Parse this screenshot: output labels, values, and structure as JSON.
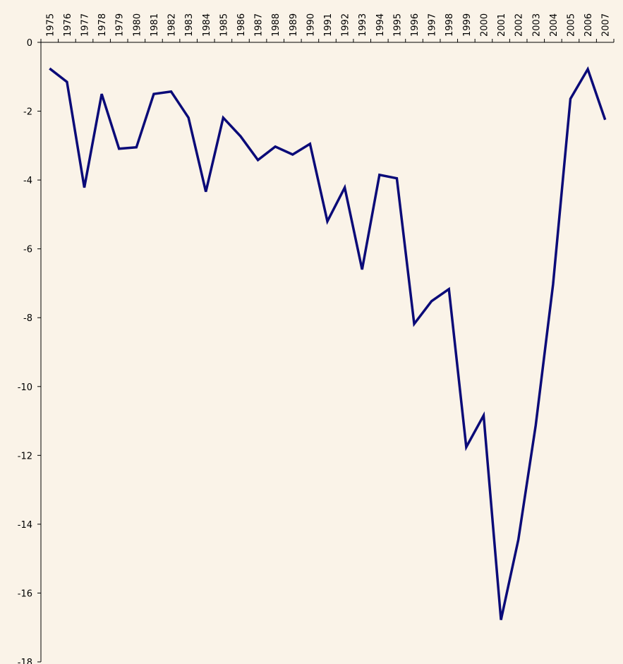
{
  "chart_data": {
    "type": "line",
    "categories": [
      "1975",
      "1976",
      "1977",
      "1978",
      "1979",
      "1980",
      "1981",
      "1982",
      "1983",
      "1984",
      "1985",
      "1986",
      "1987",
      "1988",
      "1989",
      "1990",
      "1991",
      "1992",
      "1993",
      "1994",
      "1995",
      "1996",
      "1997",
      "1998",
      "1999",
      "2000",
      "2001",
      "2002",
      "2003",
      "2004",
      "2005",
      "2006",
      "2007"
    ],
    "series": [
      {
        "color": "#0a0a78",
        "values": [
          -0.76,
          -1.15,
          -4.22,
          -1.5,
          -3.09,
          -3.05,
          -1.5,
          -1.43,
          -2.19,
          -4.34,
          -2.19,
          -2.73,
          -3.42,
          -3.03,
          -3.26,
          -2.95,
          -5.2,
          -4.22,
          -6.6,
          -3.85,
          -3.95,
          -8.18,
          -7.52,
          -7.17,
          -11.76,
          -10.84,
          -16.78,
          -14.45,
          -11.13,
          -7.03,
          -1.64,
          -0.78,
          -2.25
        ]
      }
    ],
    "ylim": [
      -18,
      0
    ],
    "yticks": [
      0,
      -2,
      -4,
      -6,
      -8,
      -10,
      -12,
      -14,
      -16,
      -18
    ]
  }
}
